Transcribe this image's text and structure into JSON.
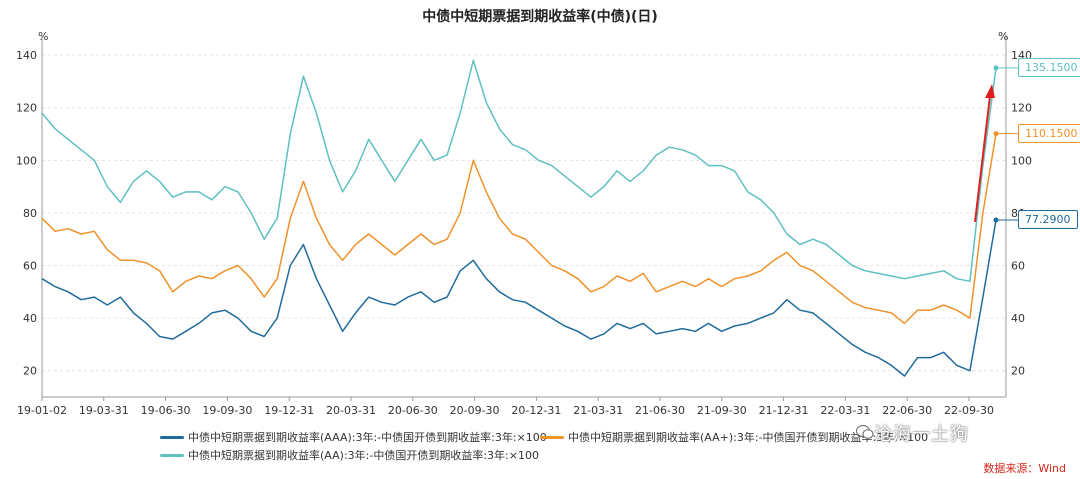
{
  "chart_data": {
    "type": "line",
    "title": "中债中短期票据到期收益率(中债)(日)",
    "y_unit_left": "%",
    "y_unit_right": "%",
    "ylim": [
      10,
      145
    ],
    "yticks": [
      20,
      40,
      60,
      80,
      100,
      120,
      140
    ],
    "x_ticks": [
      "19-01-02",
      "19-03-31",
      "19-06-30",
      "19-09-30",
      "19-12-31",
      "20-03-31",
      "20-06-30",
      "20-09-30",
      "20-12-31",
      "21-03-31",
      "21-06-30",
      "21-09-30",
      "21-12-31",
      "22-03-31",
      "22-06-30",
      "22-09-30"
    ],
    "grid": true,
    "legend_position": "bottom",
    "series": [
      {
        "name": "中债中短期票据到期收益率(AAA):3年:-中债国开债到期收益率:3年:×100",
        "color": "#1f6b9c",
        "end_label": "77.2900",
        "values": [
          55,
          52,
          50,
          47,
          48,
          45,
          48,
          42,
          38,
          33,
          32,
          35,
          38,
          42,
          43,
          40,
          35,
          33,
          40,
          60,
          68,
          55,
          45,
          35,
          42,
          48,
          46,
          45,
          48,
          50,
          46,
          48,
          58,
          62,
          55,
          50,
          47,
          46,
          43,
          40,
          37,
          35,
          32,
          34,
          38,
          36,
          38,
          34,
          35,
          36,
          35,
          38,
          35,
          37,
          38,
          40,
          42,
          47,
          43,
          42,
          38,
          34,
          30,
          27,
          25,
          22,
          18,
          25,
          25,
          27,
          22,
          20,
          48,
          77.29
        ]
      },
      {
        "name": "中债中短期票据到期收益率(AA+):3年:-中债国开债到期收益率:3年:×100",
        "color": "#f0922b",
        "end_label": "110.1500",
        "values": [
          78,
          73,
          74,
          72,
          73,
          66,
          62,
          62,
          61,
          58,
          50,
          54,
          56,
          55,
          58,
          60,
          55,
          48,
          55,
          78,
          92,
          78,
          68,
          62,
          68,
          72,
          68,
          64,
          68,
          72,
          68,
          70,
          80,
          100,
          88,
          78,
          72,
          70,
          65,
          60,
          58,
          55,
          50,
          52,
          56,
          54,
          57,
          50,
          52,
          54,
          52,
          55,
          52,
          55,
          56,
          58,
          62,
          65,
          60,
          58,
          54,
          50,
          46,
          44,
          43,
          42,
          38,
          43,
          43,
          45,
          43,
          40,
          80,
          110.15
        ]
      },
      {
        "name": "中债中短期票据到期收益率(AA):3年:-中债国开债到期收益率:3年:×100",
        "color": "#5fc0c0",
        "end_label": "135.1500",
        "values": [
          118,
          112,
          108,
          104,
          100,
          90,
          84,
          92,
          96,
          92,
          86,
          88,
          88,
          85,
          90,
          88,
          80,
          70,
          78,
          110,
          132,
          118,
          100,
          88,
          96,
          108,
          100,
          92,
          100,
          108,
          100,
          102,
          118,
          138,
          122,
          112,
          106,
          104,
          100,
          98,
          94,
          90,
          86,
          90,
          96,
          92,
          96,
          102,
          105,
          104,
          102,
          98,
          98,
          96,
          88,
          85,
          80,
          72,
          68,
          70,
          68,
          64,
          60,
          58,
          57,
          56,
          55,
          56,
          57,
          58,
          55,
          54,
          98,
          135.15
        ]
      }
    ],
    "annotations": {
      "source": "数据来源：Wind",
      "watermark": "沧海一土狗",
      "arrow_color": "#e02020"
    }
  }
}
